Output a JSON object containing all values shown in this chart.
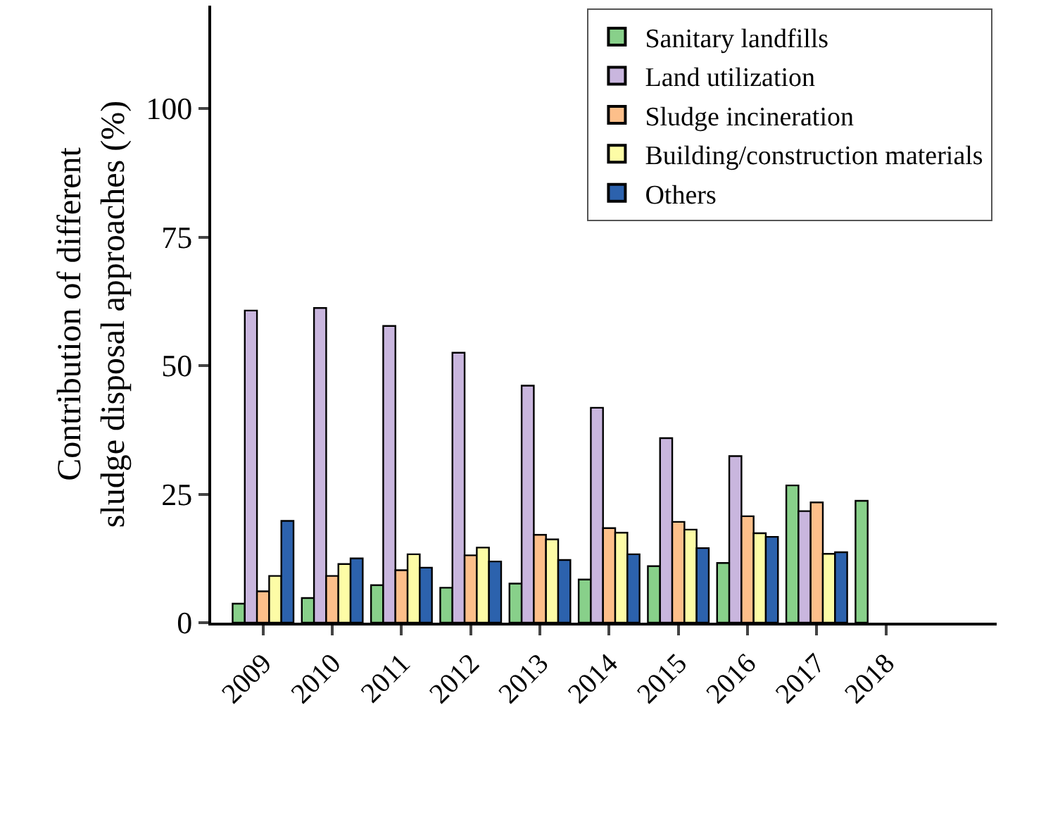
{
  "chart_data": {
    "type": "bar",
    "ylabel": "Contribution of different\nsludge disposal approaches (%)",
    "categories": [
      "2009",
      "2010",
      "2011",
      "2012",
      "2013",
      "2014",
      "2015",
      "2016",
      "2017",
      "2018"
    ],
    "series": [
      {
        "name": "Sanitary landfills",
        "color": "#88d08a",
        "values": [
          3.7,
          4.8,
          7.3,
          6.8,
          7.6,
          8.4,
          11.0,
          11.6,
          26.7,
          23.7
        ]
      },
      {
        "name": "Land utilization",
        "color": "#c9b6de",
        "values": [
          60.7,
          61.2,
          57.7,
          52.5,
          46.1,
          41.8,
          35.9,
          32.4,
          21.7,
          null
        ]
      },
      {
        "name": "Sludge incineration",
        "color": "#fdbf8a",
        "values": [
          6.1,
          9.1,
          10.2,
          13.1,
          17.1,
          18.4,
          19.6,
          20.7,
          23.4,
          null
        ]
      },
      {
        "name": "Building/construction materials",
        "color": "#fdfca6",
        "values": [
          9.1,
          11.4,
          13.3,
          14.6,
          16.2,
          17.5,
          18.1,
          17.4,
          13.4,
          null
        ]
      },
      {
        "name": "Others",
        "color": "#2c62ad",
        "values": [
          19.8,
          12.5,
          10.7,
          11.9,
          12.2,
          13.3,
          14.5,
          16.7,
          13.7,
          null
        ]
      }
    ],
    "ylim": [
      0,
      120
    ],
    "yticks": [
      0,
      25,
      50,
      75,
      100
    ],
    "legend": "top right"
  }
}
